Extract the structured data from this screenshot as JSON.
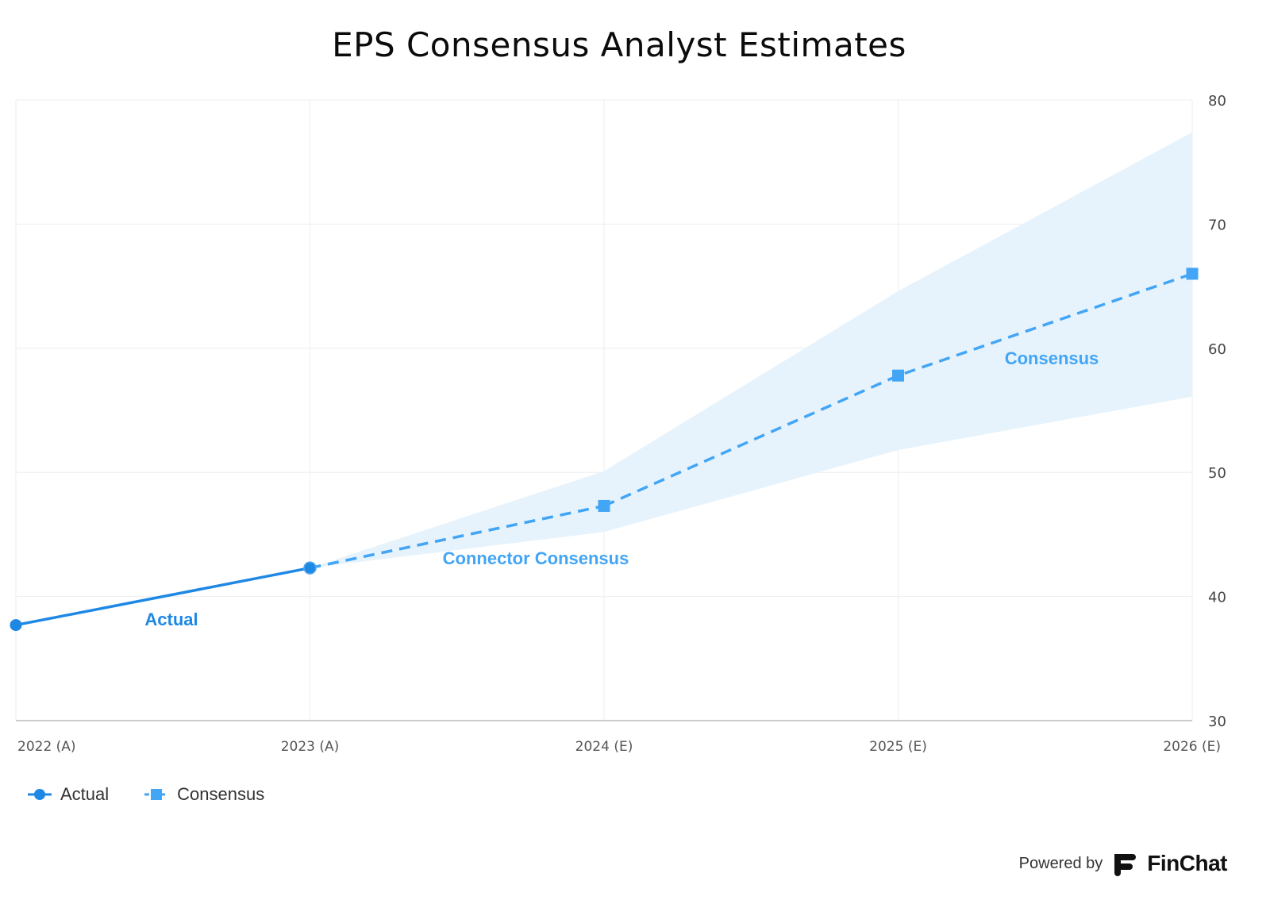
{
  "chart_data": {
    "type": "line",
    "title": "EPS Consensus Analyst Estimates",
    "categories": [
      "2022 (A)",
      "2023 (A)",
      "2024 (E)",
      "2025 (E)",
      "2026 (E)"
    ],
    "y_ticks": [
      30,
      40,
      50,
      60,
      70,
      80
    ],
    "ylim": [
      30,
      80
    ],
    "y_axis_side": "right",
    "grid": true,
    "series": [
      {
        "name": "Actual",
        "label": "Actual",
        "style": "solid",
        "marker": "circle",
        "color": "#1e88e5",
        "values": [
          37.7,
          42.3,
          null,
          null,
          null
        ]
      },
      {
        "name": "Connector Consensus",
        "label": "Connector Consensus",
        "style": "dashed",
        "marker": "none",
        "color": "#42a5f5",
        "values": [
          null,
          42.3,
          47.3,
          null,
          null
        ]
      },
      {
        "name": "Consensus",
        "label": "Consensus",
        "style": "dashed",
        "marker": "square",
        "color": "#42a5f5",
        "values": [
          null,
          null,
          47.3,
          57.8,
          66.0
        ]
      }
    ],
    "range": {
      "color": "#e6f3fc",
      "low": [
        null,
        42.3,
        45.2,
        51.8,
        56.1
      ],
      "high": [
        null,
        42.3,
        50.1,
        64.6,
        77.4
      ]
    },
    "legend": {
      "position": "bottom-left",
      "items": [
        {
          "label": "Actual",
          "marker": "circle",
          "color": "#1e88e5"
        },
        {
          "label": "Consensus",
          "marker": "square",
          "color": "#42a5f5"
        }
      ]
    }
  },
  "footer": {
    "powered_by": "Powered by",
    "brand": "FinChat"
  }
}
